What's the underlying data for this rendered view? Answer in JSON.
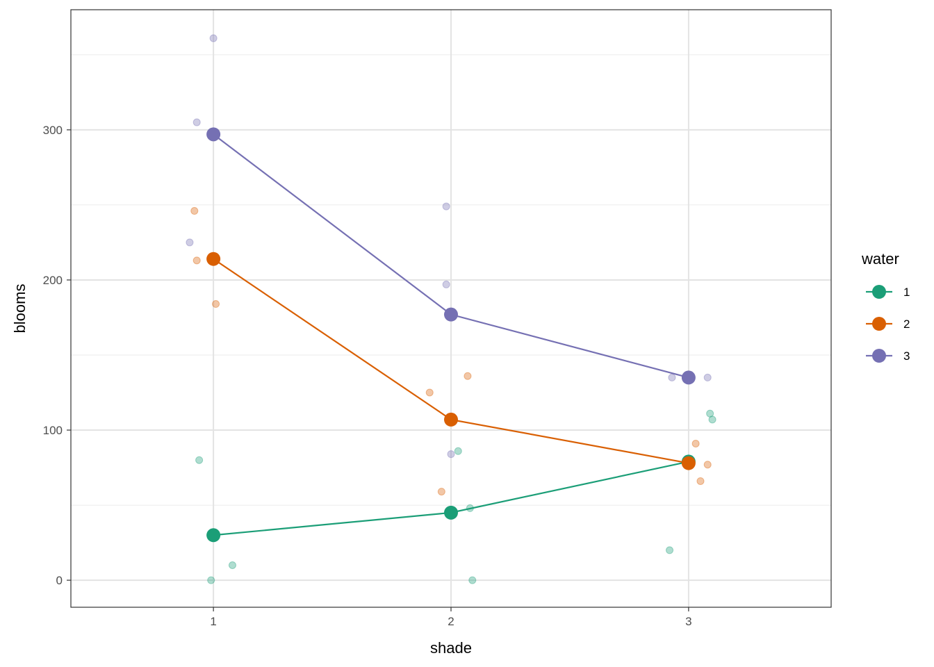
{
  "chart_data": {
    "type": "line",
    "title": "",
    "xlabel": "shade",
    "ylabel": "blooms",
    "x_categories": [
      "1",
      "2",
      "3"
    ],
    "xlim": [
      0.4,
      3.6
    ],
    "ylim": [
      -18,
      380
    ],
    "y_ticks": [
      0,
      100,
      200,
      300
    ],
    "grid": true,
    "legend": {
      "title": "water",
      "position": "right"
    },
    "colors": {
      "1": "#1b9e77",
      "2": "#d95f02",
      "3": "#7570b3"
    },
    "series": [
      {
        "name": "1",
        "means": [
          30,
          45,
          79
        ],
        "points": [
          {
            "x": 0.94,
            "y": 80
          },
          {
            "x": 0.99,
            "y": 0
          },
          {
            "x": 1.08,
            "y": 10
          },
          {
            "x": 2.03,
            "y": 86
          },
          {
            "x": 2.08,
            "y": 48
          },
          {
            "x": 2.09,
            "y": 0
          },
          {
            "x": 2.92,
            "y": 20
          },
          {
            "x": 3.09,
            "y": 111
          },
          {
            "x": 3.1,
            "y": 107
          }
        ]
      },
      {
        "name": "2",
        "means": [
          214,
          107,
          78
        ],
        "points": [
          {
            "x": 0.92,
            "y": 246
          },
          {
            "x": 0.93,
            "y": 213
          },
          {
            "x": 1.01,
            "y": 184
          },
          {
            "x": 1.91,
            "y": 125
          },
          {
            "x": 1.96,
            "y": 59
          },
          {
            "x": 2.07,
            "y": 136
          },
          {
            "x": 3.03,
            "y": 91
          },
          {
            "x": 3.05,
            "y": 66
          },
          {
            "x": 3.08,
            "y": 77
          }
        ]
      },
      {
        "name": "3",
        "means": [
          297,
          177,
          135
        ],
        "points": [
          {
            "x": 0.9,
            "y": 225
          },
          {
            "x": 0.93,
            "y": 305
          },
          {
            "x": 1.0,
            "y": 361
          },
          {
            "x": 1.98,
            "y": 249
          },
          {
            "x": 1.98,
            "y": 197
          },
          {
            "x": 2.0,
            "y": 84
          },
          {
            "x": 2.93,
            "y": 135
          },
          {
            "x": 3.08,
            "y": 135
          }
        ]
      }
    ]
  }
}
